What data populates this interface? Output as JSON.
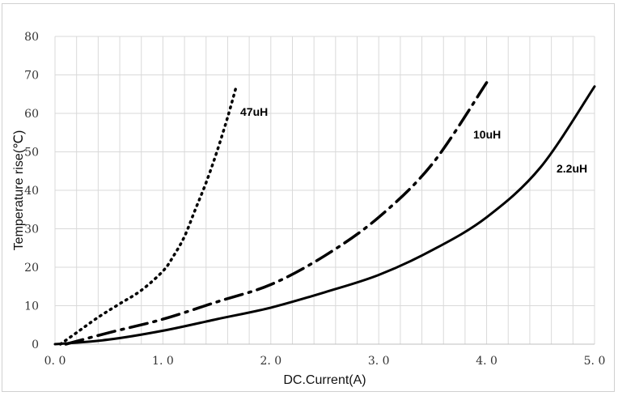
{
  "chart_data": {
    "type": "line",
    "title": "",
    "xlabel": "DC.Current(A)",
    "ylabel": "Temperature rise(℃)",
    "xlim": [
      0,
      5
    ],
    "ylim": [
      0,
      80
    ],
    "x_ticks": [
      "0. 0",
      "1. 0",
      "2. 0",
      "3. 0",
      "4. 0",
      "5. 0"
    ],
    "y_ticks": [
      "0",
      "10",
      "20",
      "30",
      "40",
      "50",
      "60",
      "70",
      "80"
    ],
    "x_minor_step": 0.2,
    "y_step": 10,
    "grid": true,
    "series": [
      {
        "name": "47uH",
        "style": "dotted",
        "color": "#000000",
        "x": [
          0.05,
          0.2,
          0.4,
          0.6,
          0.8,
          1.0,
          1.1,
          1.2,
          1.3,
          1.4,
          1.5,
          1.6,
          1.68
        ],
        "y": [
          0,
          3,
          7,
          10.5,
          14,
          19,
          23,
          28,
          35,
          42,
          50,
          59,
          67
        ]
      },
      {
        "name": "10uH",
        "style": "dashdot",
        "color": "#000000",
        "x": [
          0.1,
          0.5,
          1.0,
          1.5,
          2.0,
          2.5,
          3.0,
          3.5,
          4.0
        ],
        "y": [
          0,
          3,
          6.5,
          11,
          15.5,
          23,
          33,
          47,
          68
        ]
      },
      {
        "name": "2.2uH",
        "style": "solid",
        "color": "#000000",
        "x": [
          0.0,
          0.5,
          1.0,
          1.5,
          2.0,
          2.5,
          3.0,
          3.5,
          4.0,
          4.5,
          5.0
        ],
        "y": [
          0,
          1.2,
          3.5,
          6.5,
          9.5,
          13.5,
          18,
          24.5,
          33,
          46,
          67
        ]
      }
    ]
  }
}
